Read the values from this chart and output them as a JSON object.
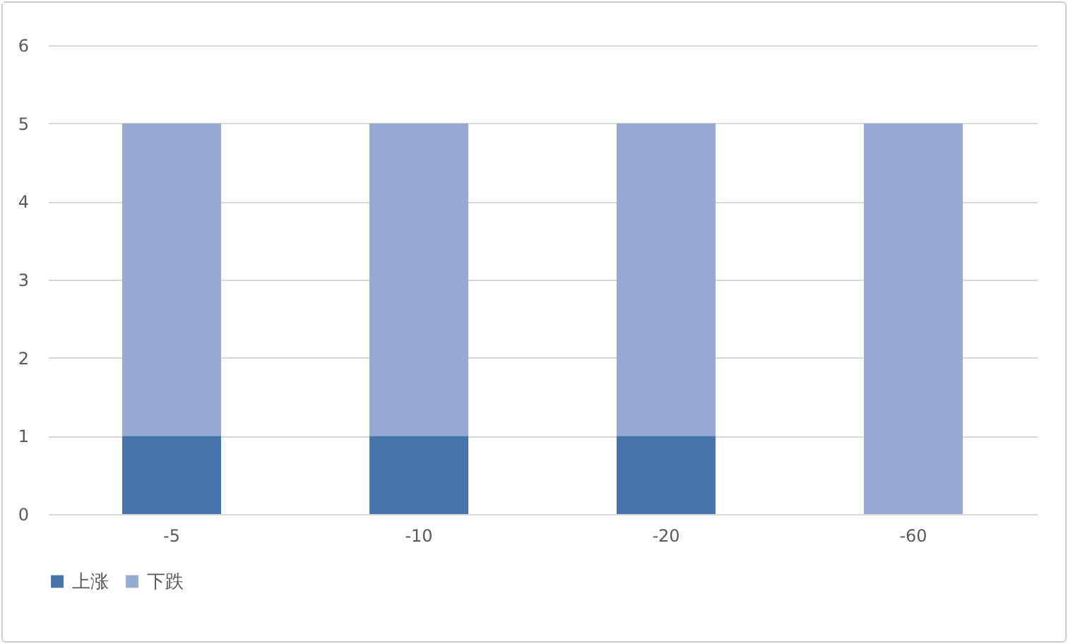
{
  "chart_data": {
    "type": "bar",
    "stacked": true,
    "categories": [
      "-5",
      "-10",
      "-20",
      "-60"
    ],
    "series": [
      {
        "name": "上涨",
        "color": "#4674aa",
        "values": [
          1,
          1,
          1,
          0
        ]
      },
      {
        "name": "下跌",
        "color": "#95abd3",
        "values": [
          4,
          4,
          4,
          5
        ]
      }
    ],
    "ylim": [
      0,
      6
    ],
    "yticks": [
      0,
      1,
      2,
      3,
      4,
      5,
      6
    ],
    "grid": "y",
    "legend": "bottom"
  }
}
